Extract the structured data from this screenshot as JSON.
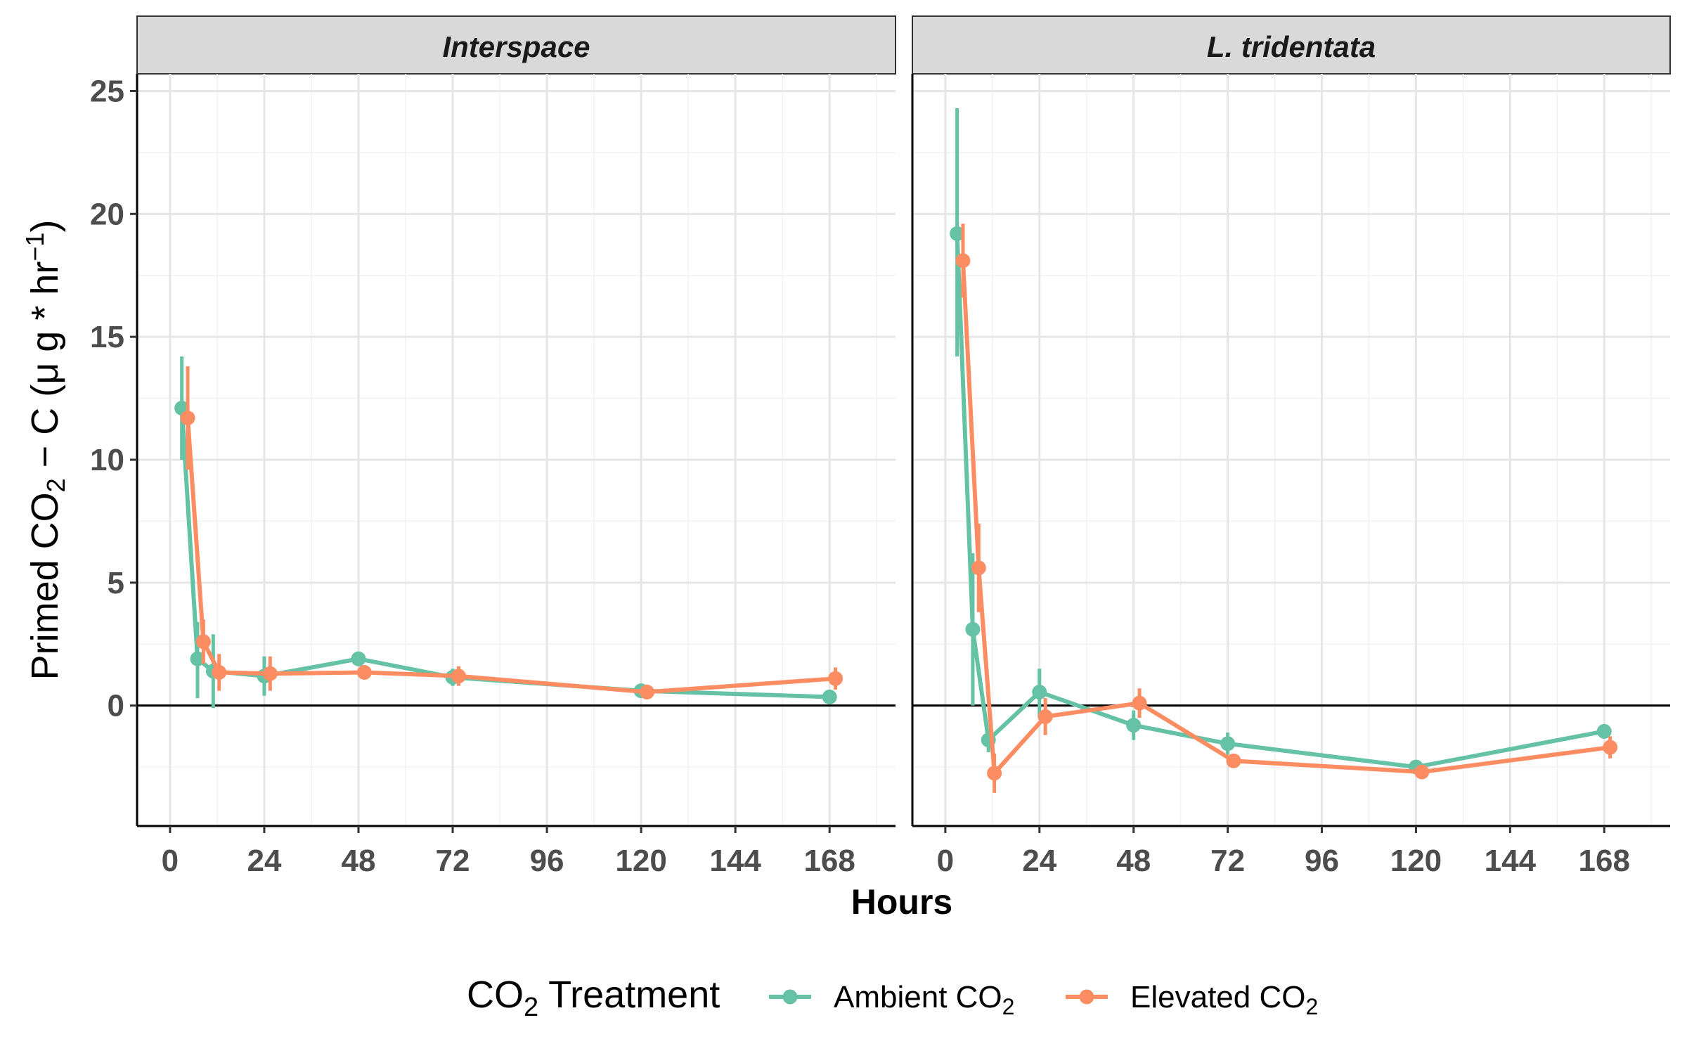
{
  "chart_data": {
    "type": "line",
    "facets": [
      "Interspace",
      "L. tridentata"
    ],
    "xlabel": "Hours",
    "ylabel": {
      "prefix": "Primed CO",
      "sub": "2",
      "middle": " − C (μ g * hr",
      "sup": "−1",
      "suffix": ")"
    },
    "x_ticks": [
      0,
      24,
      48,
      72,
      96,
      120,
      144,
      168
    ],
    "y_ticks": [
      0,
      5,
      10,
      15,
      20,
      25
    ],
    "xlim": [
      -8.4,
      184.8
    ],
    "ylim": [
      -4.9,
      25.7
    ],
    "legend": {
      "position": "bottom",
      "title": {
        "text": "CO",
        "sub": "2",
        "rest": " Treatment"
      }
    },
    "series": [
      {
        "name": "Ambient CO₂",
        "label": {
          "text": "Ambient CO",
          "sub": "2"
        },
        "color": "#66c2a5",
        "panels": {
          "Interspace": [
            {
              "x": 3,
              "y": 12.1,
              "lo": 10.0,
              "hi": 14.2
            },
            {
              "x": 7,
              "y": 1.9,
              "lo": 0.3,
              "hi": 3.4
            },
            {
              "x": 11,
              "y": 1.4,
              "lo": -0.1,
              "hi": 2.9
            },
            {
              "x": 24,
              "y": 1.2,
              "lo": 0.4,
              "hi": 2.0
            },
            {
              "x": 48,
              "y": 1.9,
              "lo": 1.6,
              "hi": 2.2
            },
            {
              "x": 72,
              "y": 1.15,
              "lo": 0.8,
              "hi": 1.5
            },
            {
              "x": 120,
              "y": 0.6,
              "lo": 0.45,
              "hi": 0.75
            },
            {
              "x": 168,
              "y": 0.35,
              "lo": 0.25,
              "hi": 0.45
            }
          ],
          "L. tridentata": [
            {
              "x": 3,
              "y": 19.2,
              "lo": 14.2,
              "hi": 24.3
            },
            {
              "x": 7,
              "y": 3.1,
              "lo": 0.0,
              "hi": 6.2
            },
            {
              "x": 11,
              "y": -1.4,
              "lo": -1.9,
              "hi": -0.9
            },
            {
              "x": 24,
              "y": 0.55,
              "lo": -0.5,
              "hi": 1.5
            },
            {
              "x": 48,
              "y": -0.8,
              "lo": -1.4,
              "hi": -0.2
            },
            {
              "x": 72,
              "y": -1.55,
              "lo": -2.0,
              "hi": -1.1
            },
            {
              "x": 120,
              "y": -2.5,
              "lo": -2.75,
              "hi": -2.25
            },
            {
              "x": 168,
              "y": -1.05,
              "lo": -1.25,
              "hi": -0.85
            }
          ]
        }
      },
      {
        "name": "Elevated CO₂",
        "label": {
          "text": "Elevated CO",
          "sub": "2"
        },
        "color": "#fc8d62",
        "panels": {
          "Interspace": [
            {
              "x": 4.5,
              "y": 11.7,
              "lo": 9.6,
              "hi": 13.8
            },
            {
              "x": 8.5,
              "y": 2.6,
              "lo": 1.7,
              "hi": 3.5
            },
            {
              "x": 12.5,
              "y": 1.35,
              "lo": 0.6,
              "hi": 2.1
            },
            {
              "x": 25.5,
              "y": 1.3,
              "lo": 0.6,
              "hi": 2.0
            },
            {
              "x": 49.5,
              "y": 1.35,
              "lo": 1.15,
              "hi": 1.55
            },
            {
              "x": 73.5,
              "y": 1.2,
              "lo": 0.8,
              "hi": 1.6
            },
            {
              "x": 121.5,
              "y": 0.55,
              "lo": 0.4,
              "hi": 0.7
            },
            {
              "x": 169.5,
              "y": 1.1,
              "lo": 0.65,
              "hi": 1.55
            }
          ],
          "L. tridentata": [
            {
              "x": 4.5,
              "y": 18.1,
              "lo": 16.6,
              "hi": 19.6
            },
            {
              "x": 8.5,
              "y": 5.6,
              "lo": 3.8,
              "hi": 7.4
            },
            {
              "x": 12.5,
              "y": -2.75,
              "lo": -3.55,
              "hi": -1.95
            },
            {
              "x": 25.5,
              "y": -0.45,
              "lo": -1.2,
              "hi": 0.3
            },
            {
              "x": 49.5,
              "y": 0.1,
              "lo": -0.5,
              "hi": 0.7
            },
            {
              "x": 73.5,
              "y": -2.25,
              "lo": -2.45,
              "hi": -2.05
            },
            {
              "x": 121.5,
              "y": -2.7,
              "lo": -2.9,
              "hi": -2.5
            },
            {
              "x": 169.5,
              "y": -1.7,
              "lo": -2.15,
              "hi": -1.25
            }
          ]
        }
      }
    ]
  }
}
